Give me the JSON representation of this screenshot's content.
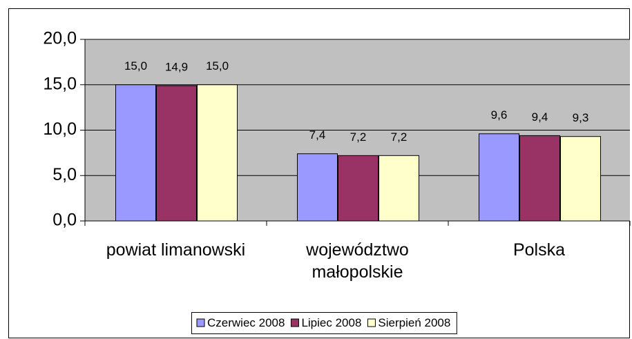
{
  "chart_data": {
    "type": "bar",
    "categories": [
      "powiat limanowski",
      "województwo małopolskie",
      "Polska"
    ],
    "series": [
      {
        "name": "Czerwiec 2008",
        "color": "#9999ff",
        "values": [
          15.0,
          7.4,
          9.6
        ],
        "value_labels": [
          "15,0",
          "7,4",
          "9,6"
        ]
      },
      {
        "name": "Lipiec 2008",
        "color": "#993366",
        "values": [
          14.9,
          7.2,
          9.4
        ],
        "value_labels": [
          "14,9",
          "7,2",
          "9,4"
        ]
      },
      {
        "name": "Sierpień 2008",
        "color": "#ffffcc",
        "values": [
          15.0,
          7.2,
          9.3
        ],
        "value_labels": [
          "15,0",
          "7,2",
          "9,3"
        ]
      }
    ],
    "ylim": [
      0,
      20
    ],
    "yticks": [
      {
        "value": 0,
        "label": "0,0"
      },
      {
        "value": 5,
        "label": "5,0"
      },
      {
        "value": 10,
        "label": "10,0"
      },
      {
        "value": 15,
        "label": "15,0"
      },
      {
        "value": 20,
        "label": "20,0"
      }
    ],
    "grid": true,
    "legend": "bottom",
    "plot_background": "#c0c0c0"
  }
}
